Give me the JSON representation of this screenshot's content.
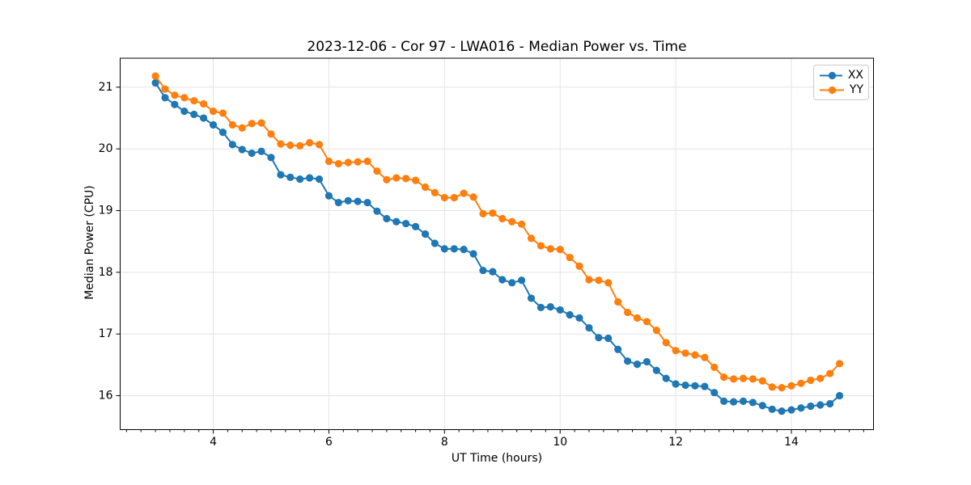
{
  "figure": {
    "background": "#ffffff",
    "frame_color": "#000000",
    "grid_color": "#e4e4e4"
  },
  "chart_data": {
    "type": "line",
    "title": "2023-12-06 - Cor 97 - LWA016 - Median Power vs. Time",
    "xlabel": "UT Time (hours)",
    "ylabel": "Median Power (CPU)",
    "xlim": [
      2.39,
      15.42
    ],
    "ylim": [
      15.45,
      21.47
    ],
    "x_ticks": [
      4,
      6,
      8,
      10,
      12,
      14
    ],
    "y_ticks": [
      16,
      17,
      18,
      19,
      20,
      21
    ],
    "x_minor_step": 0.25,
    "grid": "major-only",
    "legend_position": "upper-right",
    "marker": "circle",
    "x": [
      3.0,
      3.167,
      3.333,
      3.5,
      3.667,
      3.833,
      4.0,
      4.167,
      4.333,
      4.5,
      4.667,
      4.833,
      5.0,
      5.167,
      5.333,
      5.5,
      5.667,
      5.833,
      6.0,
      6.167,
      6.333,
      6.5,
      6.667,
      6.833,
      7.0,
      7.167,
      7.333,
      7.5,
      7.667,
      7.833,
      8.0,
      8.167,
      8.333,
      8.5,
      8.667,
      8.833,
      9.0,
      9.167,
      9.333,
      9.5,
      9.667,
      9.833,
      10.0,
      10.167,
      10.333,
      10.5,
      10.667,
      10.833,
      11.0,
      11.167,
      11.333,
      11.5,
      11.667,
      11.833,
      12.0,
      12.167,
      12.333,
      12.5,
      12.667,
      12.833,
      13.0,
      13.167,
      13.333,
      13.5,
      13.667,
      13.833,
      14.0,
      14.167,
      14.333,
      14.5,
      14.667,
      14.833
    ],
    "series": [
      {
        "name": "XX",
        "color": "#1f77b4",
        "values": [
          21.07,
          20.83,
          20.72,
          20.61,
          20.56,
          20.5,
          20.39,
          20.27,
          20.07,
          19.99,
          19.93,
          19.96,
          19.86,
          19.58,
          19.54,
          19.51,
          19.53,
          19.51,
          19.24,
          19.13,
          19.16,
          19.15,
          19.13,
          18.99,
          18.87,
          18.82,
          18.79,
          18.74,
          18.62,
          18.47,
          18.38,
          18.38,
          18.37,
          18.3,
          18.03,
          18.01,
          17.88,
          17.83,
          17.87,
          17.58,
          17.43,
          17.44,
          17.39,
          17.31,
          17.26,
          17.1,
          16.94,
          16.93,
          16.75,
          16.56,
          16.51,
          16.55,
          16.41,
          16.28,
          16.19,
          16.17,
          16.16,
          16.15,
          16.05,
          15.91,
          15.9,
          15.91,
          15.89,
          15.84,
          15.78,
          15.75,
          15.77,
          15.8,
          15.83,
          15.85,
          15.87,
          16.0
        ]
      },
      {
        "name": "YY",
        "color": "#ff7f0e",
        "values": [
          21.18,
          20.97,
          20.87,
          20.83,
          20.78,
          20.73,
          20.61,
          20.58,
          20.39,
          20.34,
          20.41,
          20.42,
          20.24,
          20.08,
          20.06,
          20.05,
          20.1,
          20.07,
          19.8,
          19.76,
          19.78,
          19.79,
          19.8,
          19.64,
          19.5,
          19.53,
          19.52,
          19.49,
          19.38,
          19.29,
          19.21,
          19.21,
          19.28,
          19.22,
          18.95,
          18.96,
          18.87,
          18.82,
          18.78,
          18.55,
          18.43,
          18.38,
          18.37,
          18.24,
          18.1,
          17.88,
          17.87,
          17.83,
          17.52,
          17.35,
          17.26,
          17.2,
          17.06,
          16.86,
          16.73,
          16.69,
          16.66,
          16.62,
          16.46,
          16.3,
          16.27,
          16.28,
          16.27,
          16.24,
          16.14,
          16.13,
          16.16,
          16.2,
          16.25,
          16.28,
          16.36,
          16.52
        ]
      }
    ]
  }
}
